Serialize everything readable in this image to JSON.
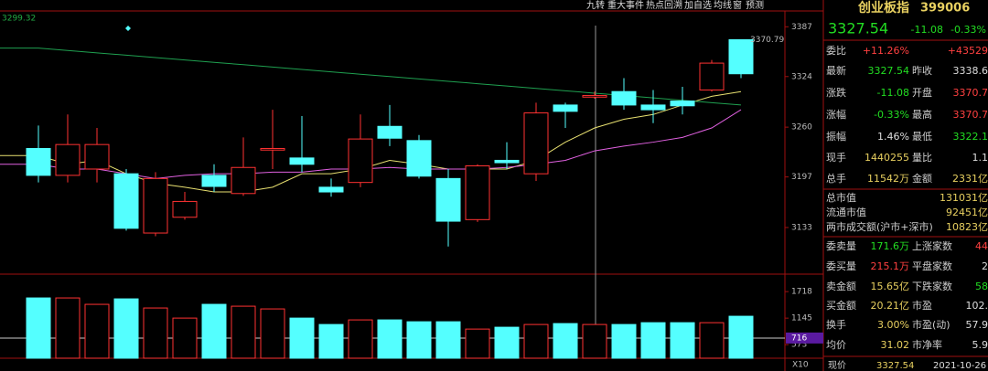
{
  "toolbar": [
    "九转",
    "重大事件",
    "热点回溯",
    "加自选",
    "均线",
    "窗",
    "预测"
  ],
  "chart_data": {
    "type": "candlestick",
    "left_label": 3299.32,
    "high_label": 3370.79,
    "ylim": [
      3074,
      3407
    ],
    "yticks": [
      3387,
      3324,
      3260,
      3197,
      3133
    ],
    "up_color": "#ff3232",
    "down_color": "#54ffff",
    "open": [
      3233,
      3199,
      3207,
      3201,
      3126,
      3146,
      3199,
      3176,
      3231,
      3221,
      3184,
      3190,
      3261,
      3243,
      3195,
      3143,
      3218,
      3201,
      3288,
      3298,
      3305,
      3288,
      3293,
      3307,
      3370.7
    ],
    "high": [
      3262,
      3276,
      3259,
      3207,
      3203,
      3178,
      3213,
      3247,
      3282,
      3274,
      3195,
      3276,
      3288,
      3250,
      3207,
      3213,
      3241,
      3291,
      3291,
      3305,
      3322,
      3307,
      3311,
      3345,
      3370.79
    ],
    "low": [
      3190,
      3190,
      3190,
      3129,
      3122,
      3143,
      3178,
      3173,
      3207,
      3203,
      3172,
      3184,
      3236,
      3195,
      3109,
      3140,
      3207,
      3192,
      3259,
      3296,
      3282,
      3265,
      3276,
      3305,
      3322
    ],
    "close": [
      3199,
      3238,
      3238,
      3132,
      3195,
      3166,
      3185,
      3209,
      3233,
      3213,
      3178,
      3245,
      3246,
      3198,
      3141,
      3211,
      3215,
      3278,
      3280,
      3300,
      3288,
      3282,
      3287,
      3341,
      3327.54
    ],
    "series": [
      {
        "color": "#e8e070",
        "values": [
          3224,
          3213,
          3218,
          3201,
          3189,
          3184,
          3178,
          3178,
          3184,
          3201,
          3201,
          3207,
          3218,
          3213,
          3207,
          3207,
          3207,
          3218,
          3241,
          3259,
          3270,
          3276,
          3288,
          3299,
          3305
        ]
      },
      {
        "color": "#e060e0",
        "values": [
          3213,
          3207,
          3207,
          3201,
          3195,
          3199,
          3201,
          3201,
          3203,
          3203,
          3207,
          3207,
          3209,
          3207,
          3207,
          3207,
          3209,
          3213,
          3218,
          3230,
          3236,
          3241,
          3247,
          3259,
          3282
        ]
      },
      {
        "color": "#1fa050",
        "values": [
          3360,
          3357,
          3354,
          3351,
          3348,
          3345,
          3342,
          3339,
          3336,
          3333,
          3330,
          3327,
          3324,
          3321,
          3318,
          3315,
          3312,
          3309,
          3306,
          3303,
          3300,
          3297,
          3294,
          3291,
          3288
        ]
      }
    ],
    "volume": {
      "values": [
        1581,
        1581,
        1443,
        1561,
        1364,
        1146,
        1443,
        1403,
        1344,
        1146,
        1008,
        1107,
        1107,
        1067,
        1067,
        909,
        949,
        1008,
        1028,
        1008,
        1008,
        1047,
        1047,
        1047,
        1186
      ],
      "ylim": [
        280,
        2095
      ],
      "yticks": [
        1718,
        1145,
        573
      ],
      "crosshair": 716,
      "scale_label": "X10"
    }
  },
  "panel": {
    "name": "创业板指",
    "code": "399006",
    "price": "3327.54",
    "change": "-11.08",
    "change_pct": "-0.33%",
    "rows": [
      [
        "委比",
        "+11.26%",
        "+43529"
      ],
      [
        "最新",
        "3327.54",
        "昨收",
        "3338.6"
      ],
      [
        "涨跌",
        "-11.08",
        "开盘",
        "3370.7"
      ],
      [
        "涨幅",
        "-0.33%",
        "最高",
        "3370.7"
      ],
      [
        "振幅",
        "1.46%",
        "最低",
        "3322.1"
      ],
      [
        "现手",
        "1440255",
        "量比",
        "1.1"
      ],
      [
        "总手",
        "11542万",
        "金额",
        "2331亿"
      ],
      [
        "总市值",
        "131031亿"
      ],
      [
        "流通市值",
        "92451亿"
      ],
      [
        "两市成交额(沪市+深市)",
        "10823亿"
      ],
      [
        "委卖量",
        "171.6万",
        "上涨家数",
        "44"
      ],
      [
        "委买量",
        "215.1万",
        "平盘家数",
        "2"
      ],
      [
        "卖金额",
        "15.65亿",
        "下跌家数",
        "58"
      ],
      [
        "买金额",
        "20.21亿",
        "市盈",
        "102."
      ],
      [
        "换手",
        "3.00%",
        "市盈(动)",
        "57.9"
      ],
      [
        "均价",
        "31.02",
        "市净率",
        "5.9"
      ]
    ],
    "footer": [
      "现价",
      "3327.54",
      "2021-10-26"
    ]
  }
}
